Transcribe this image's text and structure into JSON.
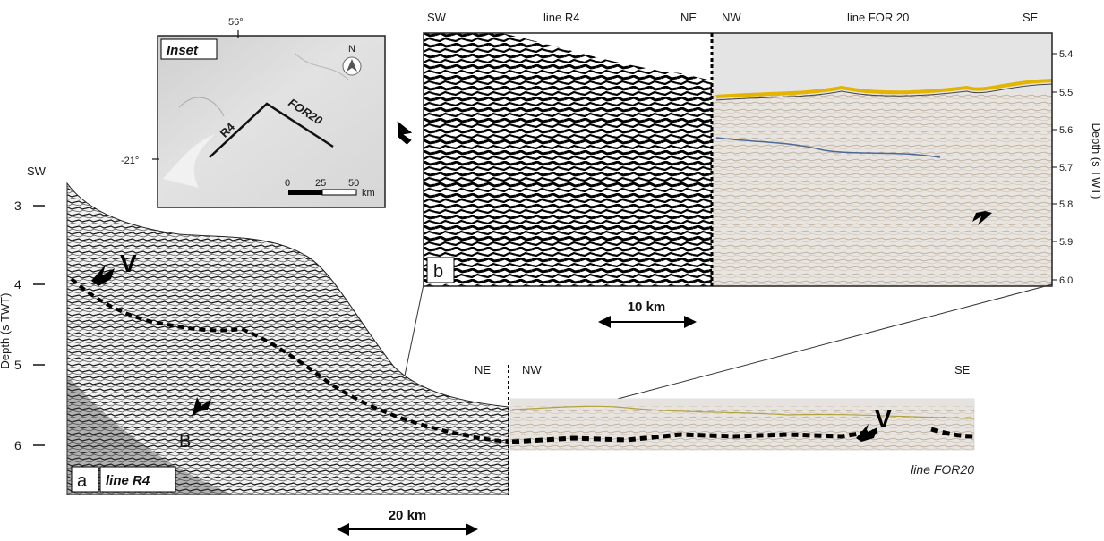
{
  "inset": {
    "title": "Inset",
    "lon_label": "56°",
    "lat_label": "-21°",
    "north": "N",
    "line_r4": "R4",
    "line_for20": "FOR20",
    "scale": {
      "zero": "0",
      "mid": "25",
      "end": "50",
      "unit": "km"
    }
  },
  "panel_a": {
    "letter": "a",
    "tag": "line R4",
    "sw": "SW",
    "ne": "NE",
    "axis_title": "Depth (s TWT)",
    "ticks": [
      "3",
      "4",
      "5",
      "6"
    ],
    "marker_v": "V",
    "marker_b": "B",
    "scale_label": "20 km"
  },
  "panel_b": {
    "letter": "b",
    "sw": "SW",
    "title_r4": "line R4",
    "ne": "NE",
    "nw": "NW",
    "title_for20": "line FOR 20",
    "se": "SE",
    "axis_title": "Depth (s TWT)",
    "ticks": [
      "5.4",
      "5.5",
      "5.6",
      "5.7",
      "5.8",
      "5.9",
      "6.0"
    ],
    "scale_label": "10 km"
  },
  "for20_section": {
    "nw": "NW",
    "se": "SE",
    "marker_v": "V",
    "caption": "line FOR20"
  }
}
